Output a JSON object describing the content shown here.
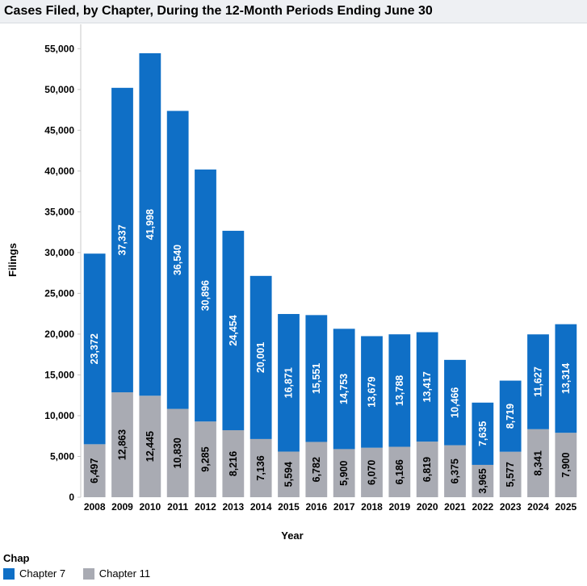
{
  "colors": {
    "chapter7": "#0f6fc6",
    "chapter11": "#a9abb3",
    "axis": "#000000"
  },
  "chart_data": {
    "type": "bar",
    "stacked": true,
    "title": "Cases Filed, by Chapter, During the 12-Month Periods Ending June 30",
    "xlabel": "Year",
    "ylabel": "Filings",
    "ylim": [
      0,
      58000
    ],
    "yticks": [
      0,
      5000,
      10000,
      15000,
      20000,
      25000,
      30000,
      35000,
      40000,
      45000,
      50000,
      55000
    ],
    "ytick_labels": [
      "0",
      "5,000",
      "10,000",
      "15,000",
      "20,000",
      "25,000",
      "30,000",
      "35,000",
      "40,000",
      "45,000",
      "50,000",
      "55,000"
    ],
    "categories": [
      "2008",
      "2009",
      "2010",
      "2011",
      "2012",
      "2013",
      "2014",
      "2015",
      "2016",
      "2017",
      "2018",
      "2019",
      "2020",
      "2021",
      "2022",
      "2023",
      "2024",
      "2025"
    ],
    "series": [
      {
        "name": "Chapter 11",
        "values": [
          6497,
          12863,
          12445,
          10830,
          9285,
          8216,
          7136,
          5594,
          6782,
          5900,
          6070,
          6186,
          6819,
          6375,
          3965,
          5577,
          8341,
          7900
        ],
        "labels": [
          "6,497",
          "12,863",
          "12,445",
          "10,830",
          "9,285",
          "8,216",
          "7,136",
          "5,594",
          "6,782",
          "5,900",
          "6,070",
          "6,186",
          "6,819",
          "6,375",
          "3,965",
          "5,577",
          "8,341",
          "7,900"
        ]
      },
      {
        "name": "Chapter 7",
        "values": [
          23372,
          37337,
          41998,
          36540,
          30896,
          24454,
          20001,
          16871,
          15551,
          14753,
          13679,
          13788,
          13417,
          10466,
          7635,
          8719,
          11627,
          13314
        ],
        "labels": [
          "23,372",
          "37,337",
          "41,998",
          "36,540",
          "30,896",
          "24,454",
          "20,001",
          "16,871",
          "15,551",
          "14,753",
          "13,679",
          "13,788",
          "13,417",
          "10,466",
          "7,635",
          "8,719",
          "11,627",
          "13,314"
        ]
      }
    ]
  },
  "legend": {
    "title": "Chap",
    "items": [
      {
        "label": "Chapter 7",
        "color": "#0f6fc6"
      },
      {
        "label": "Chapter 11",
        "color": "#a9abb3"
      }
    ]
  }
}
